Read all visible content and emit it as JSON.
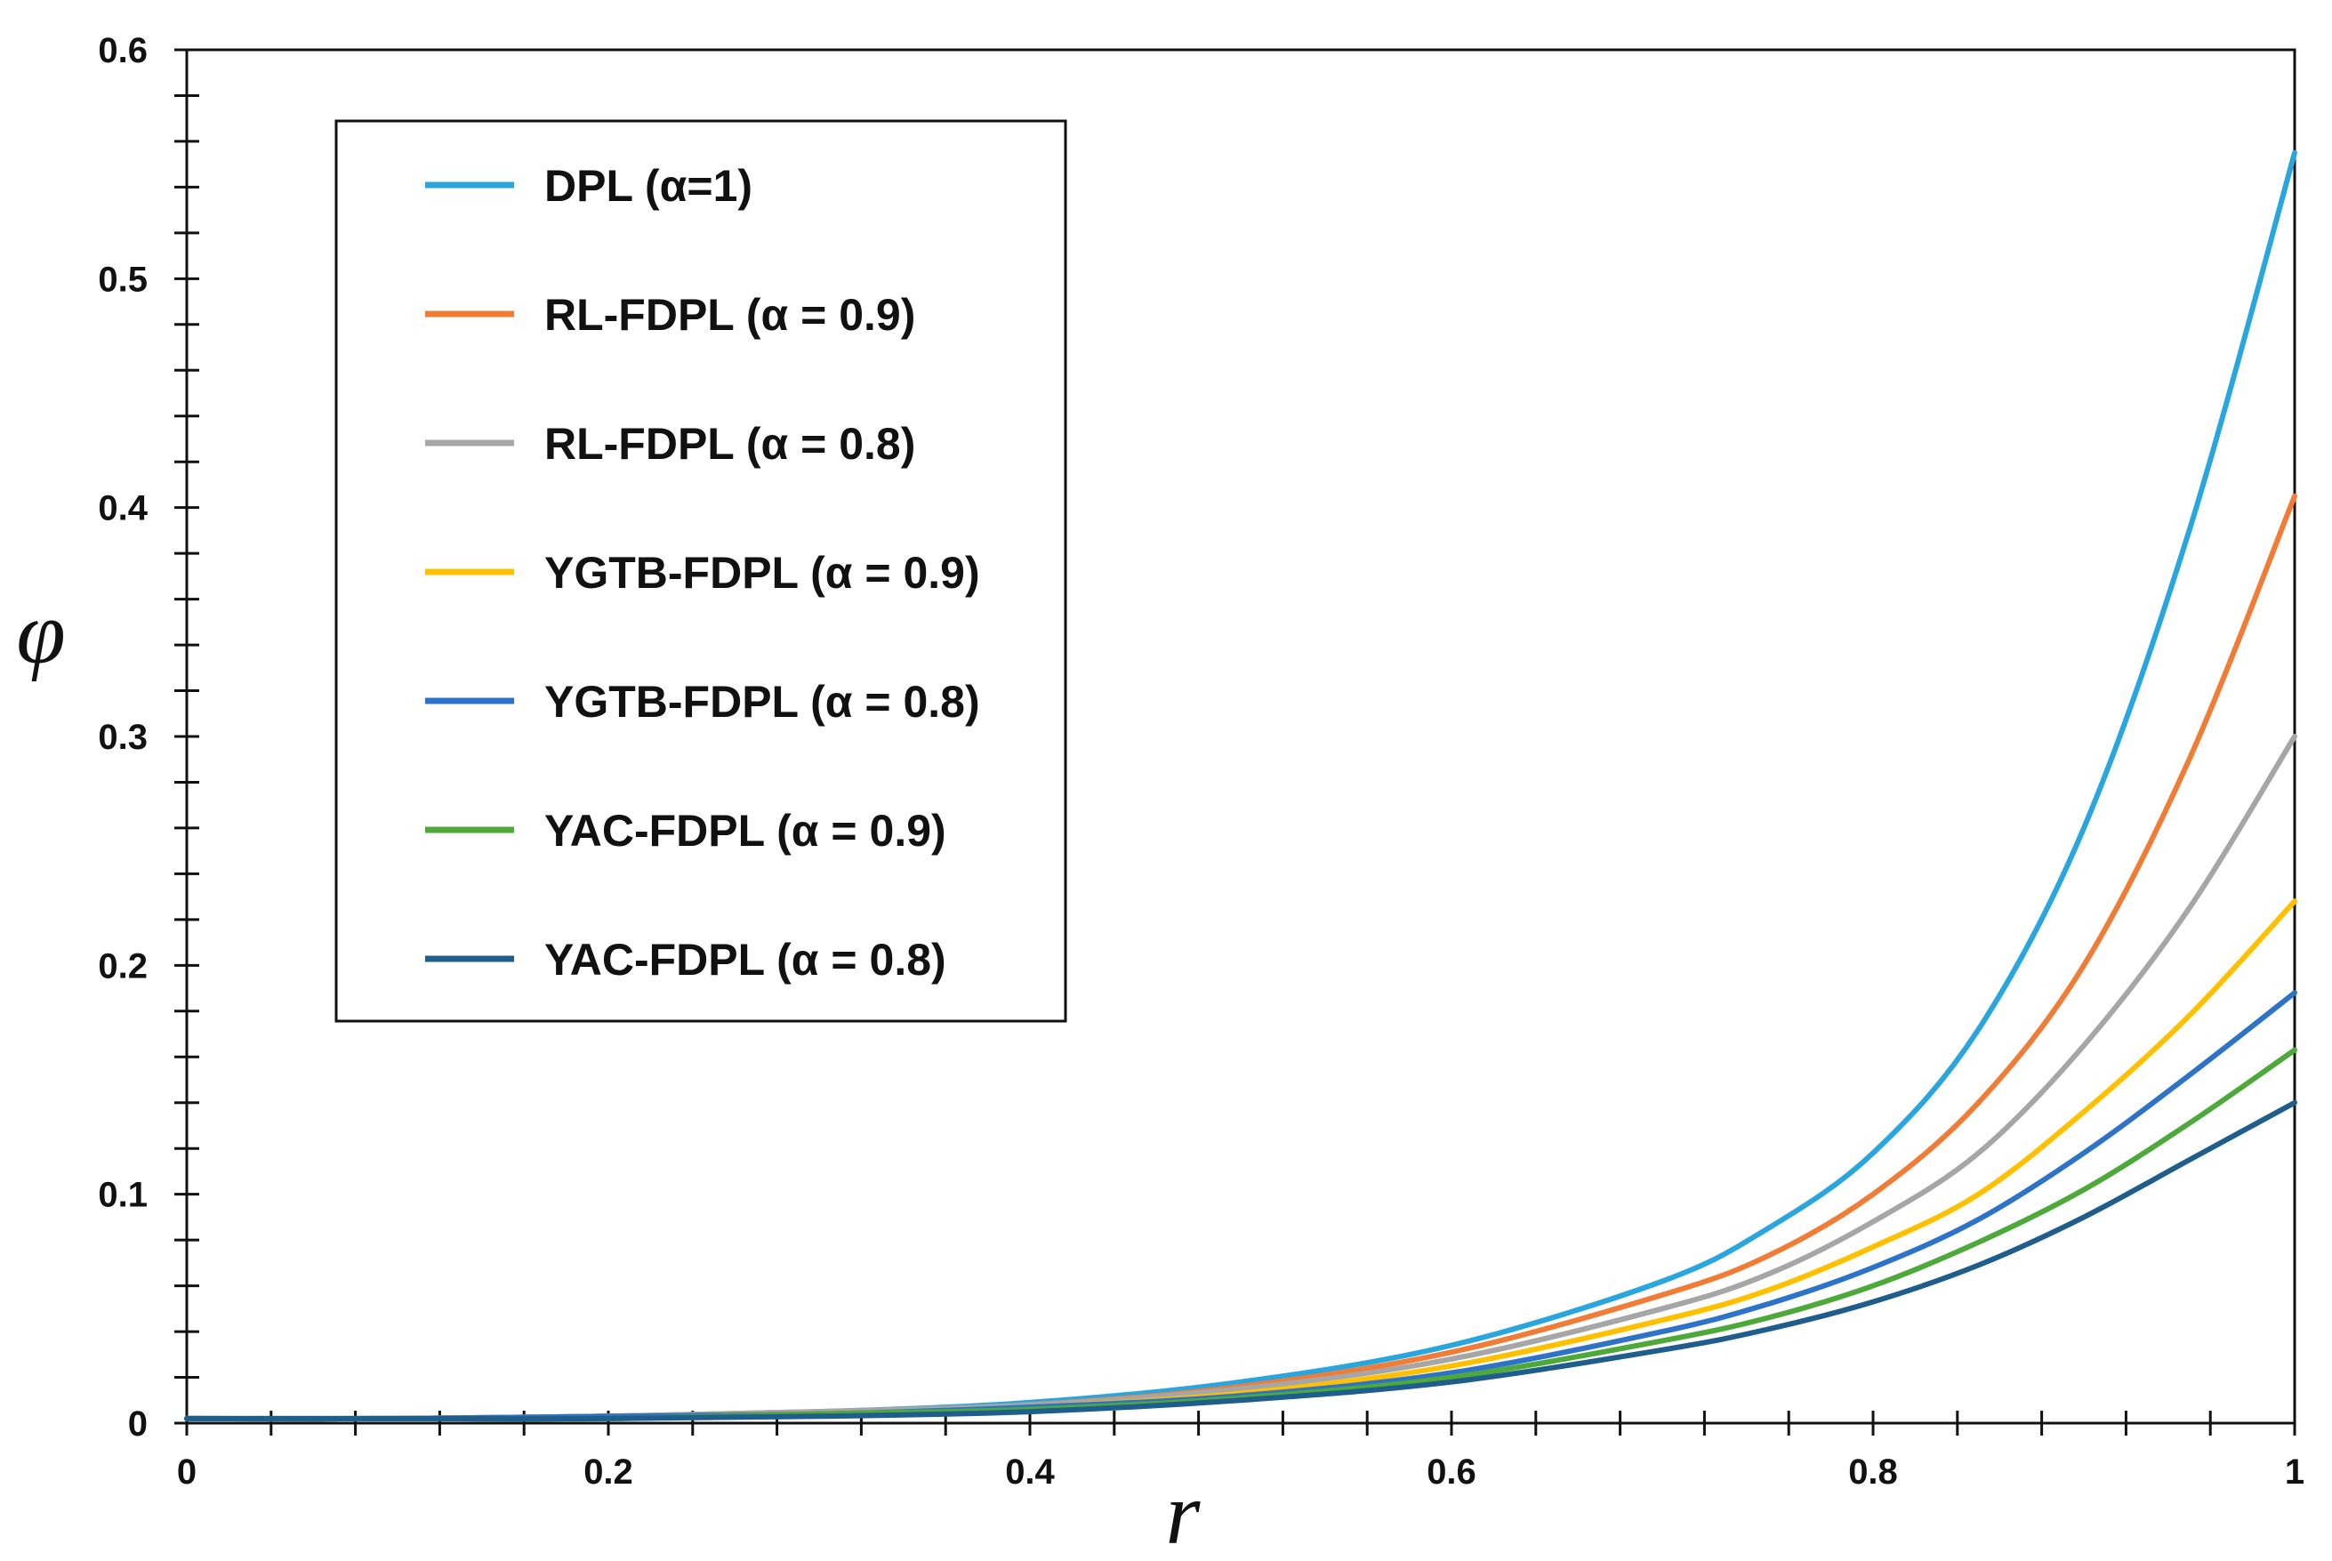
{
  "chart_data": {
    "type": "line",
    "title": "",
    "xlabel": "r",
    "ylabel": "φ",
    "xlim": [
      0,
      1
    ],
    "ylim": [
      0,
      0.6
    ],
    "x_ticks": [
      0,
      0.2,
      0.4,
      0.6,
      0.8,
      1
    ],
    "x_tick_labels": [
      "0",
      "0.2",
      "0.4",
      "0.6",
      "0.8",
      "1"
    ],
    "y_ticks": [
      0,
      0.1,
      0.2,
      0.3,
      0.4,
      0.5,
      0.6
    ],
    "y_tick_labels": [
      "0",
      "0.1",
      "0.2",
      "0.3",
      "0.4",
      "0.5",
      "0.6"
    ],
    "grid": false,
    "legend_position": "top-left",
    "x": [
      0,
      0.1,
      0.2,
      0.3,
      0.4,
      0.5,
      0.6,
      0.7,
      0.75,
      0.8,
      0.85,
      0.9,
      0.95,
      1.0
    ],
    "series": [
      {
        "name": "DPL (α=1)",
        "color": "#2AA6DF",
        "values": [
          0.002,
          0.002,
          0.003,
          0.005,
          0.009,
          0.018,
          0.034,
          0.062,
          0.085,
          0.118,
          0.172,
          0.26,
          0.39,
          0.555
        ]
      },
      {
        "name": "RL-FDPL (α = 0.9)",
        "color": "#F07C35",
        "values": [
          0.002,
          0.002,
          0.003,
          0.005,
          0.008,
          0.016,
          0.031,
          0.056,
          0.073,
          0.1,
          0.14,
          0.2,
          0.29,
          0.405
        ]
      },
      {
        "name": "RL-FDPL (α = 0.8)",
        "color": "#A6A6A6",
        "values": [
          0.002,
          0.002,
          0.003,
          0.005,
          0.008,
          0.015,
          0.028,
          0.05,
          0.065,
          0.088,
          0.118,
          0.165,
          0.225,
          0.3
        ]
      },
      {
        "name": "YGTB-FDPL  (α = 0.9)",
        "color": "#FFC000",
        "values": [
          0.002,
          0.002,
          0.003,
          0.004,
          0.007,
          0.013,
          0.025,
          0.045,
          0.058,
          0.077,
          0.1,
          0.136,
          0.178,
          0.228
        ]
      },
      {
        "name": "YGTB-FDPL  (α = 0.8)",
        "color": "#2D74C8",
        "values": [
          0.002,
          0.002,
          0.003,
          0.004,
          0.007,
          0.012,
          0.022,
          0.04,
          0.052,
          0.068,
          0.089,
          0.118,
          0.152,
          0.188
        ]
      },
      {
        "name": "YAC-FDPL  (α = 0.9)",
        "color": "#4DAA3A",
        "values": [
          0.002,
          0.002,
          0.002,
          0.004,
          0.006,
          0.011,
          0.02,
          0.036,
          0.046,
          0.06,
          0.079,
          0.102,
          0.131,
          0.163
        ]
      },
      {
        "name": "YAC-FDPL  (α = 0.8)",
        "color": "#1F5E8C",
        "values": [
          0.002,
          0.002,
          0.002,
          0.003,
          0.005,
          0.01,
          0.018,
          0.032,
          0.041,
          0.053,
          0.069,
          0.09,
          0.115,
          0.14
        ]
      }
    ]
  }
}
